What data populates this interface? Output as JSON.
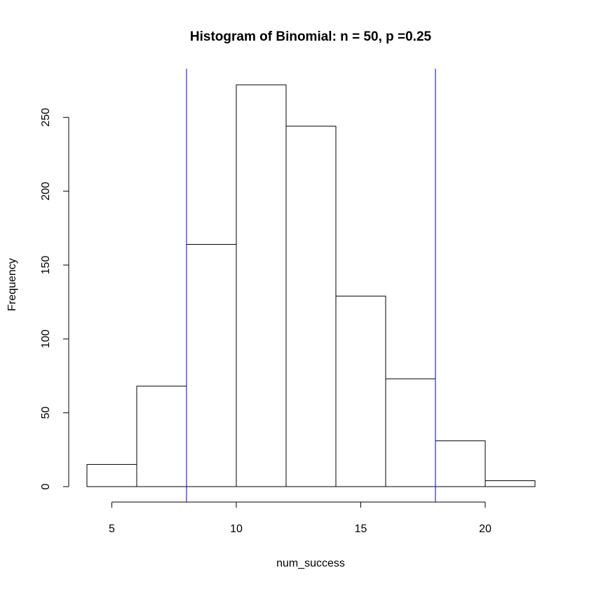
{
  "chart_data": {
    "type": "bar",
    "title": "Histogram of Binomial: n = 50, p =0.25",
    "xlabel": "num_success",
    "ylabel": "Frequency",
    "xlim": [
      4,
      22
    ],
    "ylim": [
      0,
      272
    ],
    "x_ticks": [
      5,
      10,
      15,
      20
    ],
    "y_ticks": [
      0,
      50,
      100,
      150,
      200,
      250
    ],
    "bins": [
      {
        "start": 4,
        "end": 6,
        "count": 15
      },
      {
        "start": 6,
        "end": 8,
        "count": 68
      },
      {
        "start": 8,
        "end": 10,
        "count": 164
      },
      {
        "start": 10,
        "end": 12,
        "count": 272
      },
      {
        "start": 12,
        "end": 14,
        "count": 244
      },
      {
        "start": 14,
        "end": 16,
        "count": 129
      },
      {
        "start": 16,
        "end": 18,
        "count": 73
      },
      {
        "start": 18,
        "end": 20,
        "count": 31
      },
      {
        "start": 20,
        "end": 22,
        "count": 4
      }
    ],
    "reference_lines": [
      {
        "x": 8,
        "color": "#0000cc"
      },
      {
        "x": 18,
        "color": "#0000cc"
      }
    ],
    "grid": false,
    "legend": "none"
  }
}
